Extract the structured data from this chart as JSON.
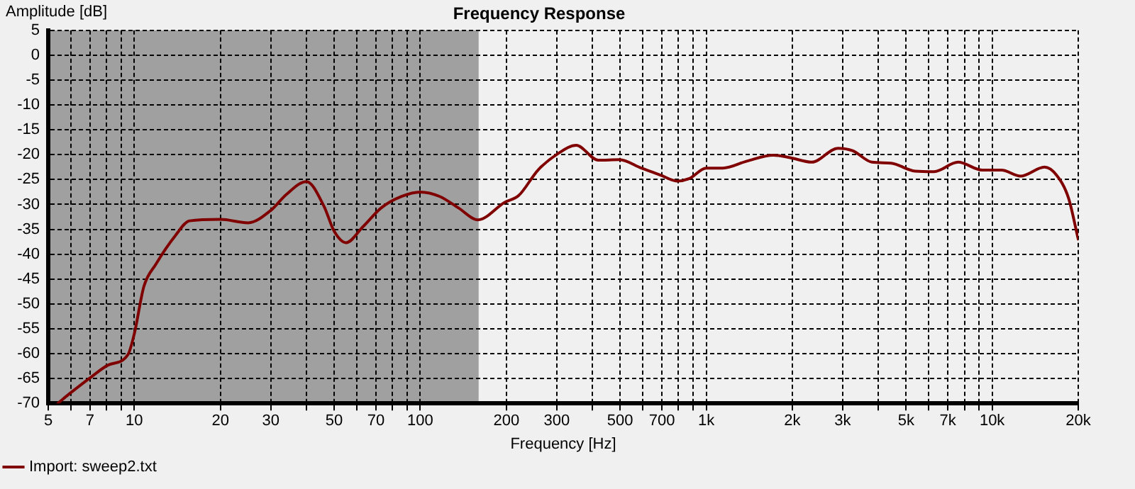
{
  "chart_data": {
    "type": "line",
    "title": "Frequency Response",
    "xlabel": "Frequency [Hz]",
    "ylabel": "Amplitude [dB]",
    "log": "x",
    "xlim": [
      5,
      20000
    ],
    "xticks": [
      5,
      {
        "value": 6,
        "label": null
      },
      7,
      {
        "value": 8,
        "label": null
      },
      {
        "value": 9,
        "label": null
      },
      10,
      20,
      30,
      {
        "value": 40,
        "label": null
      },
      50,
      {
        "value": 60,
        "label": null
      },
      70,
      {
        "value": 80,
        "label": null
      },
      {
        "value": 90,
        "label": null
      },
      100,
      200,
      300,
      {
        "value": 400,
        "label": null
      },
      500,
      {
        "value": 600,
        "label": null
      },
      700,
      {
        "value": 800,
        "label": null
      },
      {
        "value": 900,
        "label": null
      },
      {
        "value": 1000,
        "label": "1k"
      },
      {
        "value": 2000,
        "label": "2k"
      },
      {
        "value": 3000,
        "label": "3k"
      },
      {
        "value": 4000,
        "label": null
      },
      {
        "value": 5000,
        "label": "5k"
      },
      {
        "value": 6000,
        "label": null
      },
      {
        "value": 7000,
        "label": "7k"
      },
      {
        "value": 8000,
        "label": null
      },
      {
        "value": 9000,
        "label": null
      },
      {
        "value": 10000,
        "label": "10k"
      },
      {
        "value": 20000,
        "label": "20k"
      }
    ],
    "ylim": [
      -70,
      5
    ],
    "yticks": [
      -70,
      -65,
      -60,
      -55,
      -50,
      -45,
      -40,
      -35,
      -30,
      -25,
      -20,
      -15,
      -10,
      -5,
      0,
      5
    ],
    "grid": true,
    "legend": "bottom left",
    "marker": "none",
    "line_style": "solid",
    "bands": [
      {
        "axis": "x",
        "from": 5,
        "to": 160,
        "color": "#a0a0a0"
      }
    ],
    "series": [
      {
        "name": "Import: sweep2.txt",
        "color": "#800000",
        "x": [
          5.4,
          5.95,
          7.1,
          8.1,
          9.5,
          10,
          10.8,
          11.9,
          13.9,
          15.6,
          20,
          25,
          30,
          34,
          40,
          46,
          50,
          55,
          63,
          73,
          86,
          100,
          117,
          136,
          159,
          197,
          221,
          258,
          301,
          351,
          419,
          497,
          593,
          692,
          792,
          873,
          1000,
          1143,
          1387,
          1717,
          1964,
          2339,
          2892,
          3250,
          3796,
          4427,
          5373,
          6266,
          7600,
          9224,
          10780,
          12560,
          15240,
          16780,
          18490,
          20000
        ],
        "values": [
          -70,
          -68,
          -64.6,
          -62.3,
          -60.2,
          -56,
          -46.5,
          -42,
          -36.3,
          -33.3,
          -33,
          -33.7,
          -31.2,
          -28,
          -25.4,
          -30.3,
          -35.4,
          -37.7,
          -34.5,
          -30.7,
          -28.4,
          -27.5,
          -28.4,
          -30.7,
          -33.1,
          -29.6,
          -28.2,
          -23.1,
          -19.9,
          -18.1,
          -21.1,
          -21,
          -22.7,
          -24.1,
          -25.3,
          -24.8,
          -22.7,
          -22.7,
          -21.3,
          -20.1,
          -20.6,
          -21.5,
          -18.7,
          -19.2,
          -21.5,
          -21.7,
          -23.3,
          -23.4,
          -21.5,
          -23.1,
          -23.1,
          -24.3,
          -22.5,
          -24.1,
          -28.7,
          -37
        ]
      }
    ]
  }
}
